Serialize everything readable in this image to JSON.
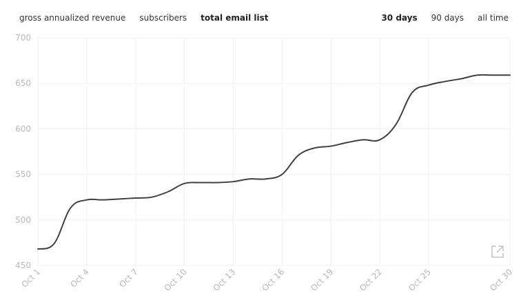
{
  "metric_tabs": [
    {
      "label": "gross annualized revenue",
      "active": false
    },
    {
      "label": "subscribers",
      "active": false
    },
    {
      "label": "total email list",
      "active": true
    }
  ],
  "range_tabs": [
    {
      "label": "30 days",
      "active": true
    },
    {
      "label": "90 days",
      "active": false
    },
    {
      "label": "all time",
      "active": false
    }
  ],
  "export_icon": "external-link-icon",
  "colors": {
    "line": "#3f3f3f",
    "grid": "#f0f0f0",
    "tick": "#b8b8b8"
  },
  "chart_data": {
    "type": "line",
    "title": "",
    "xlabel": "",
    "ylabel": "",
    "ylim": [
      450,
      700
    ],
    "yticks": [
      450,
      500,
      550,
      600,
      650,
      700
    ],
    "xticks": [
      "Oct 1",
      "Oct 4",
      "Oct 7",
      "Oct 10",
      "Oct 13",
      "Oct 16",
      "Oct 19",
      "Oct 22",
      "Oct 25",
      "Oct 30"
    ],
    "grid": true,
    "x": [
      "Oct 1",
      "Oct 2",
      "Oct 3",
      "Oct 4",
      "Oct 5",
      "Oct 6",
      "Oct 7",
      "Oct 8",
      "Oct 9",
      "Oct 10",
      "Oct 11",
      "Oct 12",
      "Oct 13",
      "Oct 14",
      "Oct 15",
      "Oct 16",
      "Oct 17",
      "Oct 18",
      "Oct 19",
      "Oct 20",
      "Oct 21",
      "Oct 22",
      "Oct 23",
      "Oct 24",
      "Oct 25",
      "Oct 26",
      "Oct 27",
      "Oct 28",
      "Oct 29",
      "Oct 30"
    ],
    "series": [
      {
        "values": [
          468,
          474,
          513,
          522,
          522,
          523,
          524,
          525,
          531,
          540,
          541,
          541,
          542,
          545,
          545,
          550,
          571,
          579,
          581,
          585,
          588,
          588,
          605,
          640,
          648,
          652,
          655,
          659,
          659,
          659
        ]
      }
    ]
  }
}
